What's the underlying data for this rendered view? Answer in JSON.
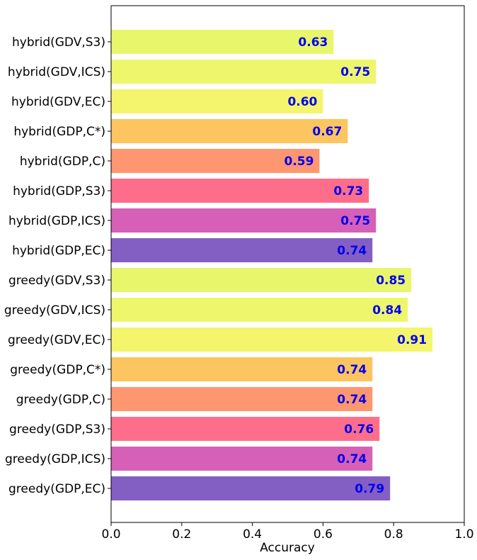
{
  "chart_data": {
    "type": "barh",
    "categories": [
      "hybrid(GDV,S3)",
      "hybrid(GDV,ICS)",
      "hybrid(GDV,EC)",
      "hybrid(GDP,C*)",
      "hybrid(GDP,C)",
      "hybrid(GDP,S3)",
      "hybrid(GDP,ICS)",
      "hybrid(GDP,EC)",
      "greedy(GDV,S3)",
      "greedy(GDV,ICS)",
      "greedy(GDV,EC)",
      "greedy(GDP,C*)",
      "greedy(GDP,C)",
      "greedy(GDP,S3)",
      "greedy(GDP,ICS)",
      "greedy(GDP,EC)"
    ],
    "values": [
      0.63,
      0.75,
      0.6,
      0.67,
      0.59,
      0.73,
      0.75,
      0.74,
      0.85,
      0.84,
      0.91,
      0.74,
      0.74,
      0.76,
      0.74,
      0.79
    ],
    "value_labels": [
      "0.63",
      "0.75",
      "0.60",
      "0.67",
      "0.59",
      "0.73",
      "0.75",
      "0.74",
      "0.85",
      "0.84",
      "0.91",
      "0.74",
      "0.74",
      "0.76",
      "0.74",
      "0.79"
    ],
    "colors": [
      "#e8f66c",
      "#eef66c",
      "#f4f56d",
      "#fdc55f",
      "#fe976f",
      "#fe6e8b",
      "#d660b7",
      "#835fc4",
      "#e8f66c",
      "#eef66c",
      "#f4f56d",
      "#fdc55f",
      "#fe976f",
      "#fe6e8b",
      "#d660b7",
      "#835fc4"
    ],
    "xlabel": "Accuracy",
    "xlim": [
      0,
      1
    ],
    "xticks": [
      {
        "value": 0,
        "label": "0.0"
      },
      0.2,
      0.4,
      0.6,
      0.8,
      {
        "value": 1,
        "label": "1.0"
      }
    ]
  }
}
